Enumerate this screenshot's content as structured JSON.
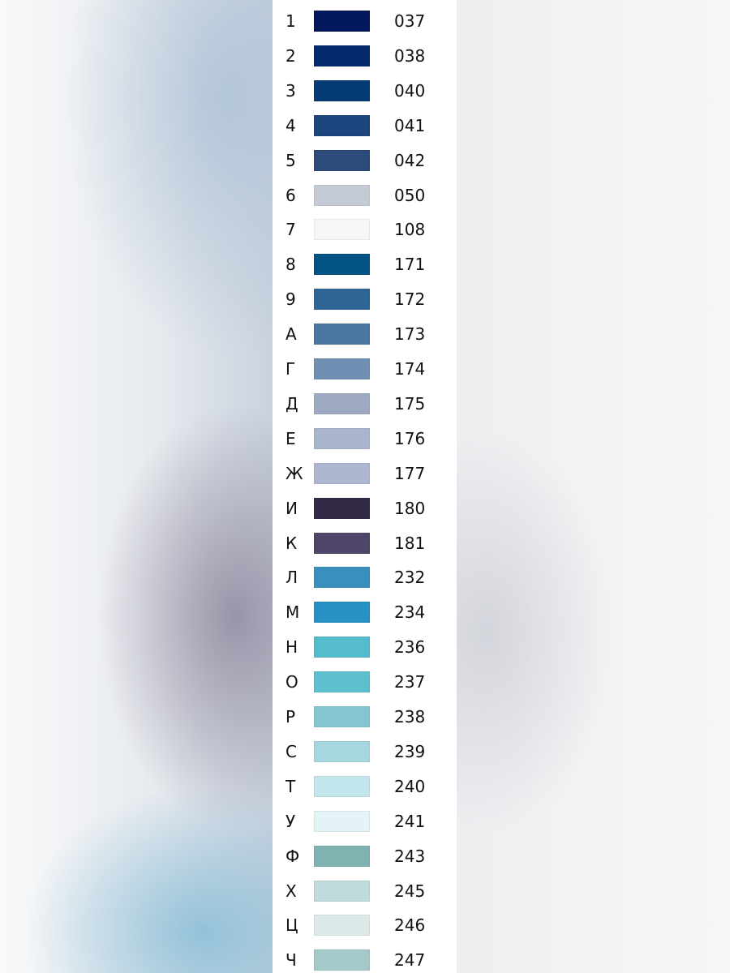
{
  "legend": [
    {
      "symbol": "1",
      "code": "037",
      "color": "#03185a"
    },
    {
      "symbol": "2",
      "code": "038",
      "color": "#052a6e"
    },
    {
      "symbol": "3",
      "code": "040",
      "color": "#053c76"
    },
    {
      "symbol": "4",
      "code": "041",
      "color": "#1d457e"
    },
    {
      "symbol": "5",
      "code": "042",
      "color": "#2b4b7b"
    },
    {
      "symbol": "6",
      "code": "050",
      "color": "#c4cbd6"
    },
    {
      "symbol": "7",
      "code": "108",
      "color": "#f5f6f8"
    },
    {
      "symbol": "8",
      "code": "171",
      "color": "#035486"
    },
    {
      "symbol": "9",
      "code": "172",
      "color": "#2f6497"
    },
    {
      "symbol": "А",
      "code": "173",
      "color": "#4c77a2"
    },
    {
      "symbol": "Г",
      "code": "174",
      "color": "#6f8fb3"
    },
    {
      "symbol": "Д",
      "code": "175",
      "color": "#9daac2"
    },
    {
      "symbol": "Е",
      "code": "176",
      "color": "#a9b5cd"
    },
    {
      "symbol": "Ж",
      "code": "177",
      "color": "#adb8d0"
    },
    {
      "symbol": "И",
      "code": "180",
      "color": "#322a46"
    },
    {
      "symbol": "К",
      "code": "181",
      "color": "#4e4569"
    },
    {
      "symbol": "Л",
      "code": "232",
      "color": "#3a90bc"
    },
    {
      "symbol": "М",
      "code": "234",
      "color": "#2691c3"
    },
    {
      "symbol": "Н",
      "code": "236",
      "color": "#55bccc"
    },
    {
      "symbol": "О",
      "code": "237",
      "color": "#5ec0ce"
    },
    {
      "symbol": "Р",
      "code": "238",
      "color": "#83c6d2"
    },
    {
      "symbol": "С",
      "code": "239",
      "color": "#a6d7de"
    },
    {
      "symbol": "Т",
      "code": "240",
      "color": "#c2e6eb"
    },
    {
      "symbol": "У",
      "code": "241",
      "color": "#e3f3f6"
    },
    {
      "symbol": "Ф",
      "code": "243",
      "color": "#7fb3b2"
    },
    {
      "symbol": "Х",
      "code": "245",
      "color": "#c0dbdb"
    },
    {
      "symbol": "Ц",
      "code": "246",
      "color": "#dbe9e9"
    },
    {
      "symbol": "Ч",
      "code": "247",
      "color": "#a3c9c8"
    }
  ]
}
